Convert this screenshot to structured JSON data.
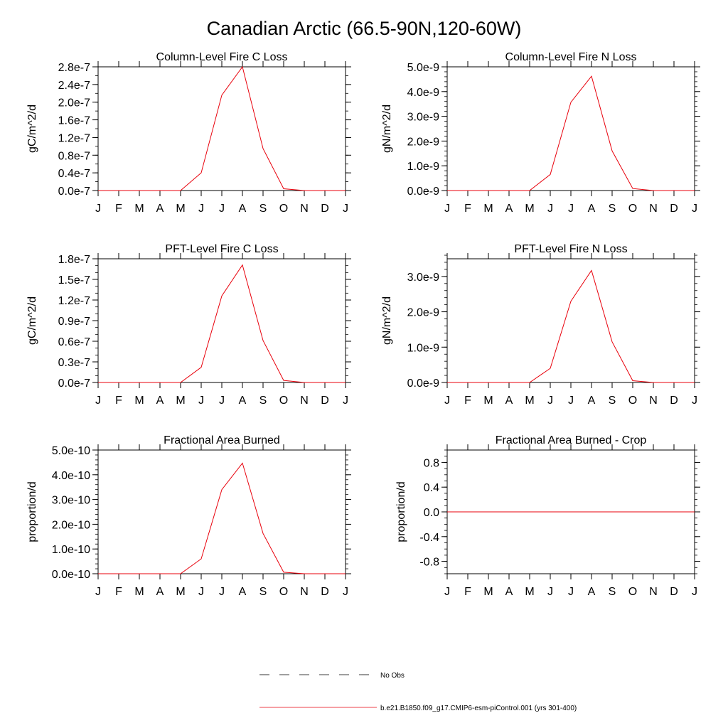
{
  "page": {
    "title": "Canadian Arctic (66.5-90N,120-60W)"
  },
  "months": [
    "J",
    "F",
    "M",
    "A",
    "M",
    "J",
    "J",
    "A",
    "S",
    "O",
    "N",
    "D",
    "J"
  ],
  "legend": {
    "obs_label": "No Obs",
    "model_label": "b.e21.B1850.f09_g17.CMIP6-esm-piControl.001 (yrs 301-400)",
    "model_color": "#e8000b",
    "obs_color": "#000000"
  },
  "chart_data": [
    {
      "type": "line",
      "title": "Column-Level Fire C Loss",
      "ylabel": "gC/m^2/d",
      "xlabel": "",
      "ylim": [
        0,
        2.8e-07
      ],
      "yticks": [
        0,
        4e-08,
        8e-08,
        1.2e-07,
        1.6e-07,
        2e-07,
        2.4e-07,
        2.8e-07
      ],
      "yticklabels": [
        "0.0e-7",
        "0.4e-7",
        "0.8e-7",
        "1.2e-7",
        "1.6e-7",
        "2.0e-7",
        "2.4e-7",
        "2.8e-7"
      ],
      "ytick_step_minor": 2e-08,
      "series": [
        {
          "name": "b.e21.B1850.f09_g17.CMIP6-esm-piControl.001 (yrs 301-400)",
          "values": [
            0,
            0,
            0,
            0,
            0.0,
            4e-08,
            2.16e-07,
            2.8e-07,
            9.5e-08,
            4e-09,
            0,
            0,
            0
          ]
        }
      ]
    },
    {
      "type": "line",
      "title": "Column-Level Fire N Loss",
      "ylabel": "gN/m^2/d",
      "xlabel": "",
      "ylim": [
        0,
        5e-09
      ],
      "yticks": [
        0,
        1e-09,
        2e-09,
        3e-09,
        4e-09,
        5e-09
      ],
      "yticklabels": [
        "0.0e-9",
        "1.0e-9",
        "2.0e-9",
        "3.0e-9",
        "4.0e-9",
        "5.0e-9"
      ],
      "ytick_step_minor": 2e-10,
      "series": [
        {
          "name": "b.e21.B1850.f09_g17.CMIP6-esm-piControl.001 (yrs 301-400)",
          "values": [
            0,
            0,
            0,
            0,
            0.0,
            6.5e-10,
            3.57e-09,
            4.62e-09,
            1.6e-09,
            8e-11,
            0,
            0,
            0
          ]
        }
      ]
    },
    {
      "type": "line",
      "title": "PFT-Level Fire C Loss",
      "ylabel": "gC/m^2/d",
      "xlabel": "",
      "ylim": [
        0,
        1.8e-07
      ],
      "yticks": [
        0,
        3e-08,
        6e-08,
        9e-08,
        1.2e-07,
        1.5e-07,
        1.8e-07
      ],
      "yticklabels": [
        "0.0e-7",
        "0.3e-7",
        "0.6e-7",
        "0.9e-7",
        "1.2e-7",
        "1.5e-7",
        "1.8e-7"
      ],
      "ytick_step_minor": 1e-08,
      "series": [
        {
          "name": "b.e21.B1850.f09_g17.CMIP6-esm-piControl.001 (yrs 301-400)",
          "values": [
            0,
            0,
            0,
            0,
            0.0,
            2.2e-08,
            1.26e-07,
            1.71e-07,
            6.1e-08,
            3e-09,
            0,
            0,
            0
          ]
        }
      ]
    },
    {
      "type": "line",
      "title": "PFT-Level Fire N Loss",
      "ylabel": "gN/m^2/d",
      "xlabel": "",
      "ylim": [
        0,
        3.5e-09
      ],
      "yticks": [
        0,
        1e-09,
        2e-09,
        3e-09
      ],
      "yticklabels": [
        "0.0e-9",
        "1.0e-9",
        "2.0e-9",
        "3.0e-9"
      ],
      "ytick_step_minor": 2e-10,
      "series": [
        {
          "name": "b.e21.B1850.f09_g17.CMIP6-esm-piControl.001 (yrs 301-400)",
          "values": [
            0,
            0,
            0,
            0,
            0.0,
            4e-10,
            2.3e-09,
            3.17e-09,
            1.15e-09,
            5e-11,
            0,
            0,
            0
          ]
        }
      ]
    },
    {
      "type": "line",
      "title": "Fractional Area Burned",
      "ylabel": "proportion/d",
      "xlabel": "",
      "ylim": [
        0,
        5e-10
      ],
      "yticks": [
        0,
        1e-10,
        2e-10,
        3e-10,
        4e-10,
        5e-10
      ],
      "yticklabels": [
        "0.0e-10",
        "1.0e-10",
        "2.0e-10",
        "3.0e-10",
        "4.0e-10",
        "5.0e-10"
      ],
      "ytick_step_minor": 2e-11,
      "series": [
        {
          "name": "b.e21.B1850.f09_g17.CMIP6-esm-piControl.001 (yrs 301-400)",
          "values": [
            0,
            0,
            0,
            0,
            0.0,
            6e-11,
            3.4e-10,
            4.47e-10,
            1.63e-10,
            6e-12,
            0,
            0,
            0
          ]
        }
      ]
    },
    {
      "type": "line",
      "title": "Fractional Area Burned - Crop",
      "ylabel": "proportion/d",
      "xlabel": "",
      "ylim": [
        -1.0,
        1.0
      ],
      "yticks": [
        -0.8,
        -0.4,
        0.0,
        0.4,
        0.8
      ],
      "yticklabels": [
        "-0.8",
        "-0.4",
        "0.0",
        "0.4",
        "0.8"
      ],
      "ytick_step_minor": 0.1,
      "series": [
        {
          "name": "b.e21.B1850.f09_g17.CMIP6-esm-piControl.001 (yrs 301-400)",
          "values": [
            0,
            0,
            0,
            0,
            0,
            0,
            0,
            0,
            0,
            0,
            0,
            0,
            0
          ]
        }
      ]
    }
  ]
}
